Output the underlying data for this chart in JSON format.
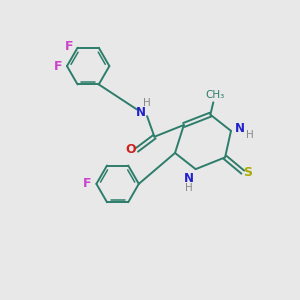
{
  "bg_color": "#e8e8e8",
  "bond_color": "#2d7d6b",
  "N_color": "#2222cc",
  "O_color": "#cc2222",
  "S_color": "#aaaa00",
  "F_color": "#cc44cc",
  "H_color": "#888888",
  "figsize": [
    3.0,
    3.0
  ],
  "dpi": 100,
  "xlim": [
    0,
    10
  ],
  "ylim": [
    0,
    10
  ]
}
